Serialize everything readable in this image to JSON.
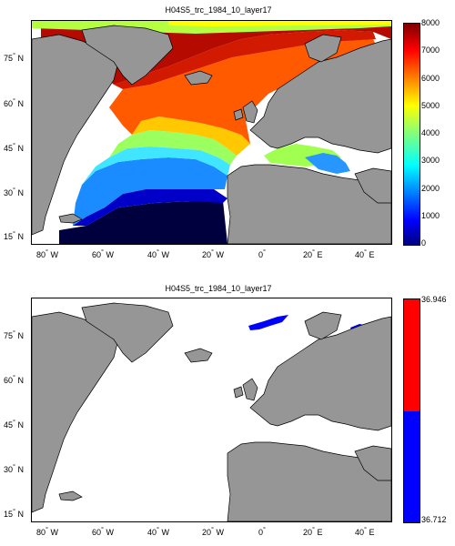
{
  "panels": [
    {
      "title": "H04S5_trc_1984_10_layer17",
      "colorbar": {
        "ticks": [
          "8000",
          "7000",
          "6000",
          "5000",
          "4000",
          "3000",
          "2000",
          "1000",
          "0"
        ],
        "range": [
          0,
          8000
        ],
        "colormap": "jet"
      }
    },
    {
      "title": "H04S5_trc_1984_10_layer17",
      "colorbar": {
        "ticks": [
          "36.946",
          "36.712"
        ],
        "range": [
          36.712,
          36.946
        ],
        "colors": [
          "#ff0000",
          "#0000ff"
        ]
      }
    }
  ],
  "lat_ticks": [
    "75",
    "60",
    "45",
    "30",
    "15"
  ],
  "lon_ticks": [
    "80",
    "60",
    "40",
    "20",
    "0",
    "20",
    "40"
  ],
  "lat_suffix": "N",
  "lon_suffixes": [
    "W",
    "W",
    "W",
    "W",
    "",
    "E",
    "E"
  ],
  "degree_symbol": "°",
  "colors": {
    "land": "#969696",
    "ocean_empty": "#ffffff",
    "coast": "#000000"
  }
}
